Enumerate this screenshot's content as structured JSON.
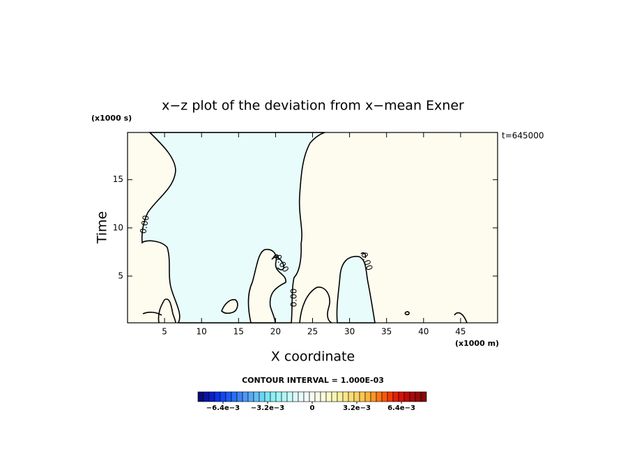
{
  "chart_data": {
    "type": "contour",
    "title": "x−z plot of the deviation from x−mean Exner",
    "x_label": "X coordinate",
    "y_label": "Time",
    "x_unit": "(x1000 m)",
    "y_unit": "(x1000 s)",
    "time_label": "t=645000",
    "xlim": [
      0,
      50
    ],
    "ylim": [
      0.15,
      19.9
    ],
    "xticks": [
      5,
      10,
      15,
      20,
      25,
      30,
      35,
      40,
      45
    ],
    "yticks": [
      5,
      10,
      15
    ],
    "contour_levels": [
      {
        "value": 0,
        "label": "0.00"
      }
    ],
    "positive_color": "#fdfcee",
    "negative_color": "#e8fcfc",
    "colorbar": {
      "title": "CONTOUR INTERVAL = 1.000E-03",
      "lim": [
        -0.0082,
        0.0082
      ],
      "ticks": [
        {
          "value": -0.0064,
          "label": "−6.4e−3"
        },
        {
          "value": -0.0032,
          "label": "−3.2e−3"
        },
        {
          "value": 0,
          "label": "0"
        },
        {
          "value": 0.0032,
          "label": "3.2e−3"
        },
        {
          "value": 0.0064,
          "label": "6.4e−3"
        }
      ],
      "colors": [
        "#0a0a78",
        "#0a14a0",
        "#0a1ec8",
        "#0a32e6",
        "#1446f0",
        "#1e5af5",
        "#2870f5",
        "#3c82f5",
        "#5096f5",
        "#5aaaf5",
        "#64bef5",
        "#6ed2f5",
        "#78e6f5",
        "#8cf0f5",
        "#a0f5f5",
        "#b4f5f5",
        "#c8fafa",
        "#dcfafa",
        "#e8fcfc",
        "#f0fcfc",
        "#fafaf0",
        "#fcfce8",
        "#fafadc",
        "#fafac8",
        "#faf5b4",
        "#faf0a0",
        "#fae68c",
        "#fadc78",
        "#fad264",
        "#fac850",
        "#fab43c",
        "#fa9628",
        "#fa7814",
        "#fa5a0a",
        "#f03c0a",
        "#e61e0a",
        "#d2140a",
        "#be0a0a",
        "#aa0a0a",
        "#960a0a",
        "#820a0a"
      ]
    }
  }
}
